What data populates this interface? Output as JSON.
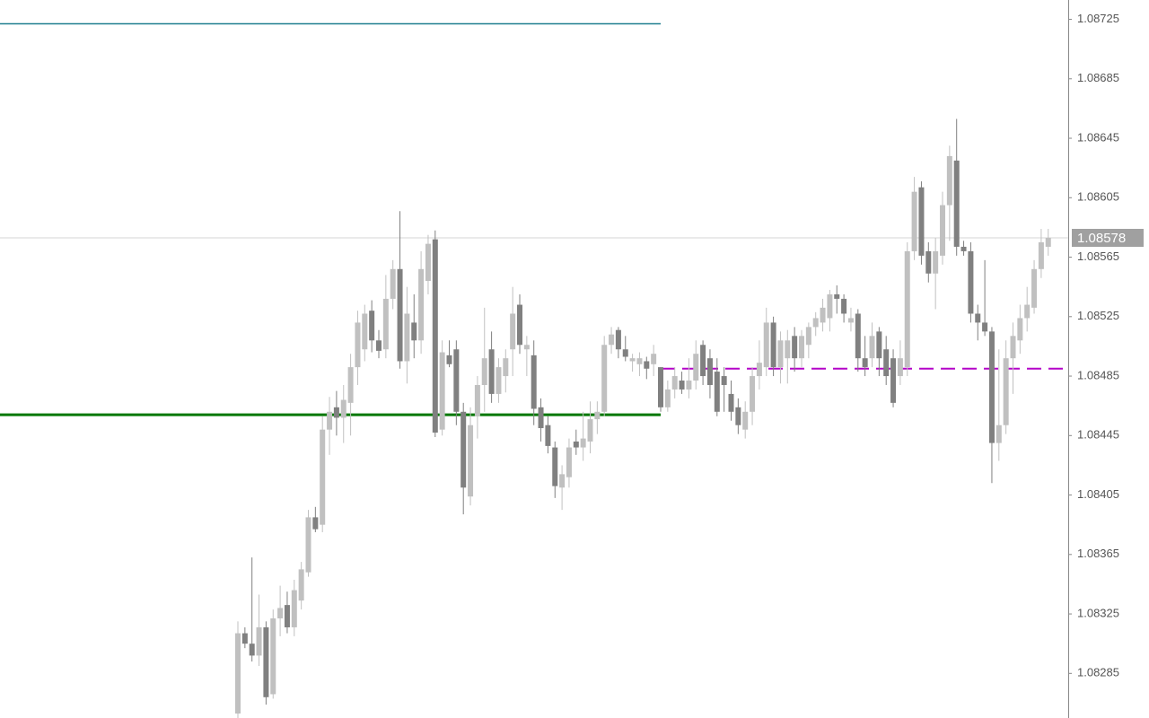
{
  "chart_data": {
    "type": "candlestick",
    "ylim": [
      1.08255,
      1.08738
    ],
    "yticks": [
      1.08725,
      1.08685,
      1.08645,
      1.08605,
      1.08565,
      1.08525,
      1.08485,
      1.08445,
      1.08405,
      1.08365,
      1.08325,
      1.08285
    ],
    "up_color": "#c0c0c0",
    "down_color": "#808080",
    "current_price": 1.08578,
    "current_price_color": "#a0a0a0",
    "levels": [
      {
        "value": 1.08722,
        "color": "#1f7f8f",
        "style": "solid"
      },
      {
        "value": 1.08459,
        "color": "#007700",
        "style": "solid"
      },
      {
        "value": 1.0849,
        "color": "#b400c8",
        "style": "dashed"
      }
    ],
    "open": [
      1.08258,
      1.08312,
      1.08305,
      1.08297,
      1.08316,
      1.08271,
      1.08322,
      1.08331,
      1.08316,
      1.08334,
      1.08353,
      1.0839,
      1.08385,
      1.08449,
      1.08464,
      1.08457,
      1.08467,
      1.08491,
      1.08503,
      1.08529,
      1.08509,
      1.08503,
      1.08537,
      1.08557,
      1.08495,
      1.08521,
      1.08509,
      1.08549,
      1.08577,
      1.08449,
      1.08499,
      1.08503,
      1.08461,
      1.08404,
      1.08458,
      1.08479,
      1.08503,
      1.08473,
      1.08485,
      1.08503,
      1.08533,
      1.08503,
      1.08499,
      1.08464,
      1.08452,
      1.08437,
      1.0841,
      1.08417,
      1.08441,
      1.08437,
      1.08441,
      1.08456,
      1.08461,
      1.08506,
      1.08516,
      1.08503,
      1.08495,
      1.08493,
      1.08495,
      1.08493,
      1.08491,
      1.08464,
      1.08476,
      1.08482,
      1.08476,
      1.08482,
      1.08506,
      1.08497,
      1.08488,
      1.08485,
      1.08473,
      1.08464,
      1.08449,
      1.08461,
      1.08485,
      1.08491,
      1.08521,
      1.08491,
      1.08497,
      1.08512,
      1.08497,
      1.08506,
      1.08518,
      1.08521,
      1.08524,
      1.0854,
      1.08537,
      1.08521,
      1.08527,
      1.08497,
      1.08497,
      1.08515,
      1.08503,
      1.08497,
      1.08485,
      1.08491,
      1.08569,
      1.08612,
      1.08569,
      1.08554,
      1.08566,
      1.086,
      1.0863,
      1.08572,
      1.08569,
      1.08527,
      1.08521,
      1.08515,
      1.0844,
      1.08452,
      1.08497,
      1.08509,
      1.08524,
      1.08531,
      1.08557,
      1.08572
    ],
    "high": [
      1.0832,
      1.08316,
      1.08363,
      1.08338,
      1.0832,
      1.08328,
      1.08344,
      1.0834,
      1.08348,
      1.0836,
      1.08395,
      1.08397,
      1.08458,
      1.08471,
      1.08475,
      1.08479,
      1.085,
      1.08529,
      1.08533,
      1.08536,
      1.08516,
      1.08553,
      1.08563,
      1.08596,
      1.08545,
      1.0854,
      1.08569,
      1.0858,
      1.08583,
      1.08509,
      1.08509,
      1.08509,
      1.08467,
      1.08464,
      1.08485,
      1.08531,
      1.08515,
      1.08497,
      1.08503,
      1.08545,
      1.0854,
      1.08512,
      1.08509,
      1.0847,
      1.08458,
      1.08441,
      1.08425,
      1.08443,
      1.08449,
      1.08461,
      1.08468,
      1.08468,
      1.08512,
      1.08518,
      1.08518,
      1.08512,
      1.085,
      1.08501,
      1.08498,
      1.08506,
      1.08491,
      1.08482,
      1.08491,
      1.08488,
      1.08497,
      1.08509,
      1.08509,
      1.08503,
      1.08497,
      1.08491,
      1.08482,
      1.0847,
      1.08468,
      1.08491,
      1.08509,
      1.08531,
      1.08525,
      1.08515,
      1.08516,
      1.08518,
      1.08516,
      1.08521,
      1.08528,
      1.08537,
      1.08543,
      1.08546,
      1.0854,
      1.08531,
      1.0853,
      1.08512,
      1.08521,
      1.08518,
      1.08512,
      1.08503,
      1.08509,
      1.08575,
      1.08619,
      1.08616,
      1.08575,
      1.08578,
      1.08609,
      1.0864,
      1.08658,
      1.08576,
      1.08575,
      1.08533,
      1.08563,
      1.08518,
      1.08503,
      1.08509,
      1.08521,
      1.08533,
      1.08545,
      1.08563,
      1.08584,
      1.08584
    ],
    "low": [
      1.08255,
      1.08302,
      1.08293,
      1.0829,
      1.08264,
      1.08268,
      1.0831,
      1.08312,
      1.0831,
      1.08328,
      1.0835,
      1.0838,
      1.0838,
      1.08432,
      1.08445,
      1.0844,
      1.08445,
      1.08479,
      1.08495,
      1.08501,
      1.08497,
      1.08497,
      1.0853,
      1.0849,
      1.0848,
      1.08497,
      1.085,
      1.0854,
      1.08444,
      1.08445,
      1.08491,
      1.08452,
      1.08392,
      1.08398,
      1.08443,
      1.08461,
      1.08467,
      1.08467,
      1.08474,
      1.08485,
      1.085,
      1.08485,
      1.08452,
      1.08441,
      1.08433,
      1.08403,
      1.08395,
      1.0841,
      1.08432,
      1.08428,
      1.08433,
      1.08446,
      1.08458,
      1.085,
      1.08497,
      1.08495,
      1.08488,
      1.08485,
      1.08483,
      1.08485,
      1.08461,
      1.08461,
      1.0847,
      1.08473,
      1.0847,
      1.08476,
      1.08479,
      1.0847,
      1.08458,
      1.08461,
      1.08455,
      1.08446,
      1.08443,
      1.08452,
      1.08476,
      1.08485,
      1.08485,
      1.0848,
      1.0848,
      1.08488,
      1.08491,
      1.08497,
      1.08512,
      1.08515,
      1.08515,
      1.08527,
      1.08521,
      1.08515,
      1.08488,
      1.08485,
      1.08491,
      1.08485,
      1.08479,
      1.08464,
      1.08479,
      1.08485,
      1.08563,
      1.0856,
      1.08548,
      1.0853,
      1.0856,
      1.08576,
      1.08566,
      1.08566,
      1.08521,
      1.08509,
      1.08512,
      1.08413,
      1.08428,
      1.08446,
      1.08473,
      1.085,
      1.08515,
      1.08527,
      1.08551,
      1.08566
    ],
    "close": [
      1.08312,
      1.08305,
      1.08297,
      1.08316,
      1.08269,
      1.08322,
      1.08329,
      1.08316,
      1.08341,
      1.08355,
      1.0839,
      1.08382,
      1.08449,
      1.08461,
      1.08457,
      1.08469,
      1.08491,
      1.08521,
      1.08527,
      1.08509,
      1.08502,
      1.08537,
      1.08557,
      1.08495,
      1.08527,
      1.08509,
      1.08557,
      1.08574,
      1.08447,
      1.08501,
      1.08493,
      1.08461,
      1.0841,
      1.08452,
      1.08479,
      1.08497,
      1.08473,
      1.08491,
      1.08497,
      1.08527,
      1.08506,
      1.08506,
      1.08463,
      1.0845,
      1.08438,
      1.08411,
      1.08419,
      1.08437,
      1.08437,
      1.08443,
      1.08456,
      1.08461,
      1.08506,
      1.08513,
      1.08503,
      1.08498,
      1.08497,
      1.08497,
      1.0849,
      1.085,
      1.08464,
      1.08476,
      1.08485,
      1.08476,
      1.08482,
      1.085,
      1.08485,
      1.08479,
      1.08461,
      1.08479,
      1.08461,
      1.08452,
      1.08461,
      1.08485,
      1.08494,
      1.08521,
      1.08491,
      1.08509,
      1.08509,
      1.08497,
      1.08512,
      1.08518,
      1.08524,
      1.08531,
      1.0854,
      1.08537,
      1.08527,
      1.08524,
      1.08497,
      1.08491,
      1.08512,
      1.08497,
      1.08485,
      1.08467,
      1.08497,
      1.08569,
      1.08609,
      1.08566,
      1.08554,
      1.08569,
      1.086,
      1.08633,
      1.08572,
      1.08569,
      1.08527,
      1.08521,
      1.08515,
      1.0844,
      1.08452,
      1.08497,
      1.08512,
      1.08524,
      1.08533,
      1.08557,
      1.08575,
      1.08578
    ]
  }
}
